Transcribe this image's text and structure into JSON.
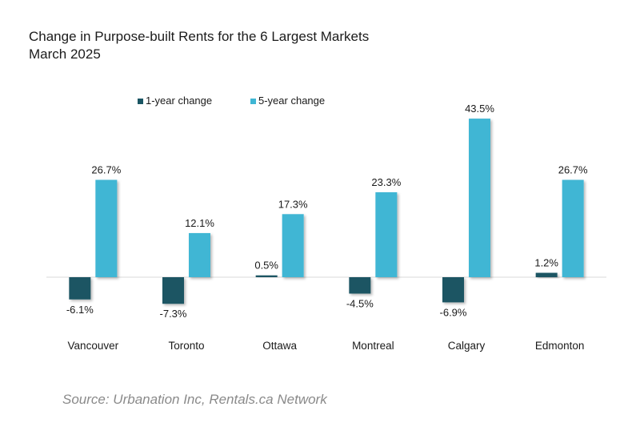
{
  "colors": {
    "one_year": "#1a5563",
    "five_year": "#3fb6d4",
    "axis": "#d9d9d9",
    "text": "#1a1a1a",
    "source": "#8a8a8a"
  },
  "chart_data": {
    "type": "bar",
    "title": "Change in Purpose-built Rents for the 6 Largest Markets",
    "subtitle": "March 2025",
    "categories": [
      "Vancouver",
      "Toronto",
      "Ottawa",
      "Montreal",
      "Calgary",
      "Edmonton"
    ],
    "series": [
      {
        "name": "1-year change",
        "color": "#1a5563",
        "values": [
          -6.1,
          -7.3,
          0.5,
          -4.5,
          -6.9,
          1.2
        ],
        "labels": [
          "-6.1%",
          "-7.3%",
          "0.5%",
          "-4.5%",
          "-6.9%",
          "1.2%"
        ]
      },
      {
        "name": "5-year change",
        "color": "#3fb6d4",
        "values": [
          26.7,
          12.1,
          17.3,
          23.3,
          43.5,
          26.7
        ],
        "labels": [
          "26.7%",
          "12.1%",
          "17.3%",
          "23.3%",
          "43.5%",
          "26.7%"
        ]
      }
    ],
    "legend_position": "top-left",
    "grid": false,
    "ylim": [
      -10,
      46
    ],
    "xlabel": "",
    "ylabel": ""
  },
  "footer": {
    "source": "Source: Urbanation Inc, Rentals.ca Network"
  }
}
